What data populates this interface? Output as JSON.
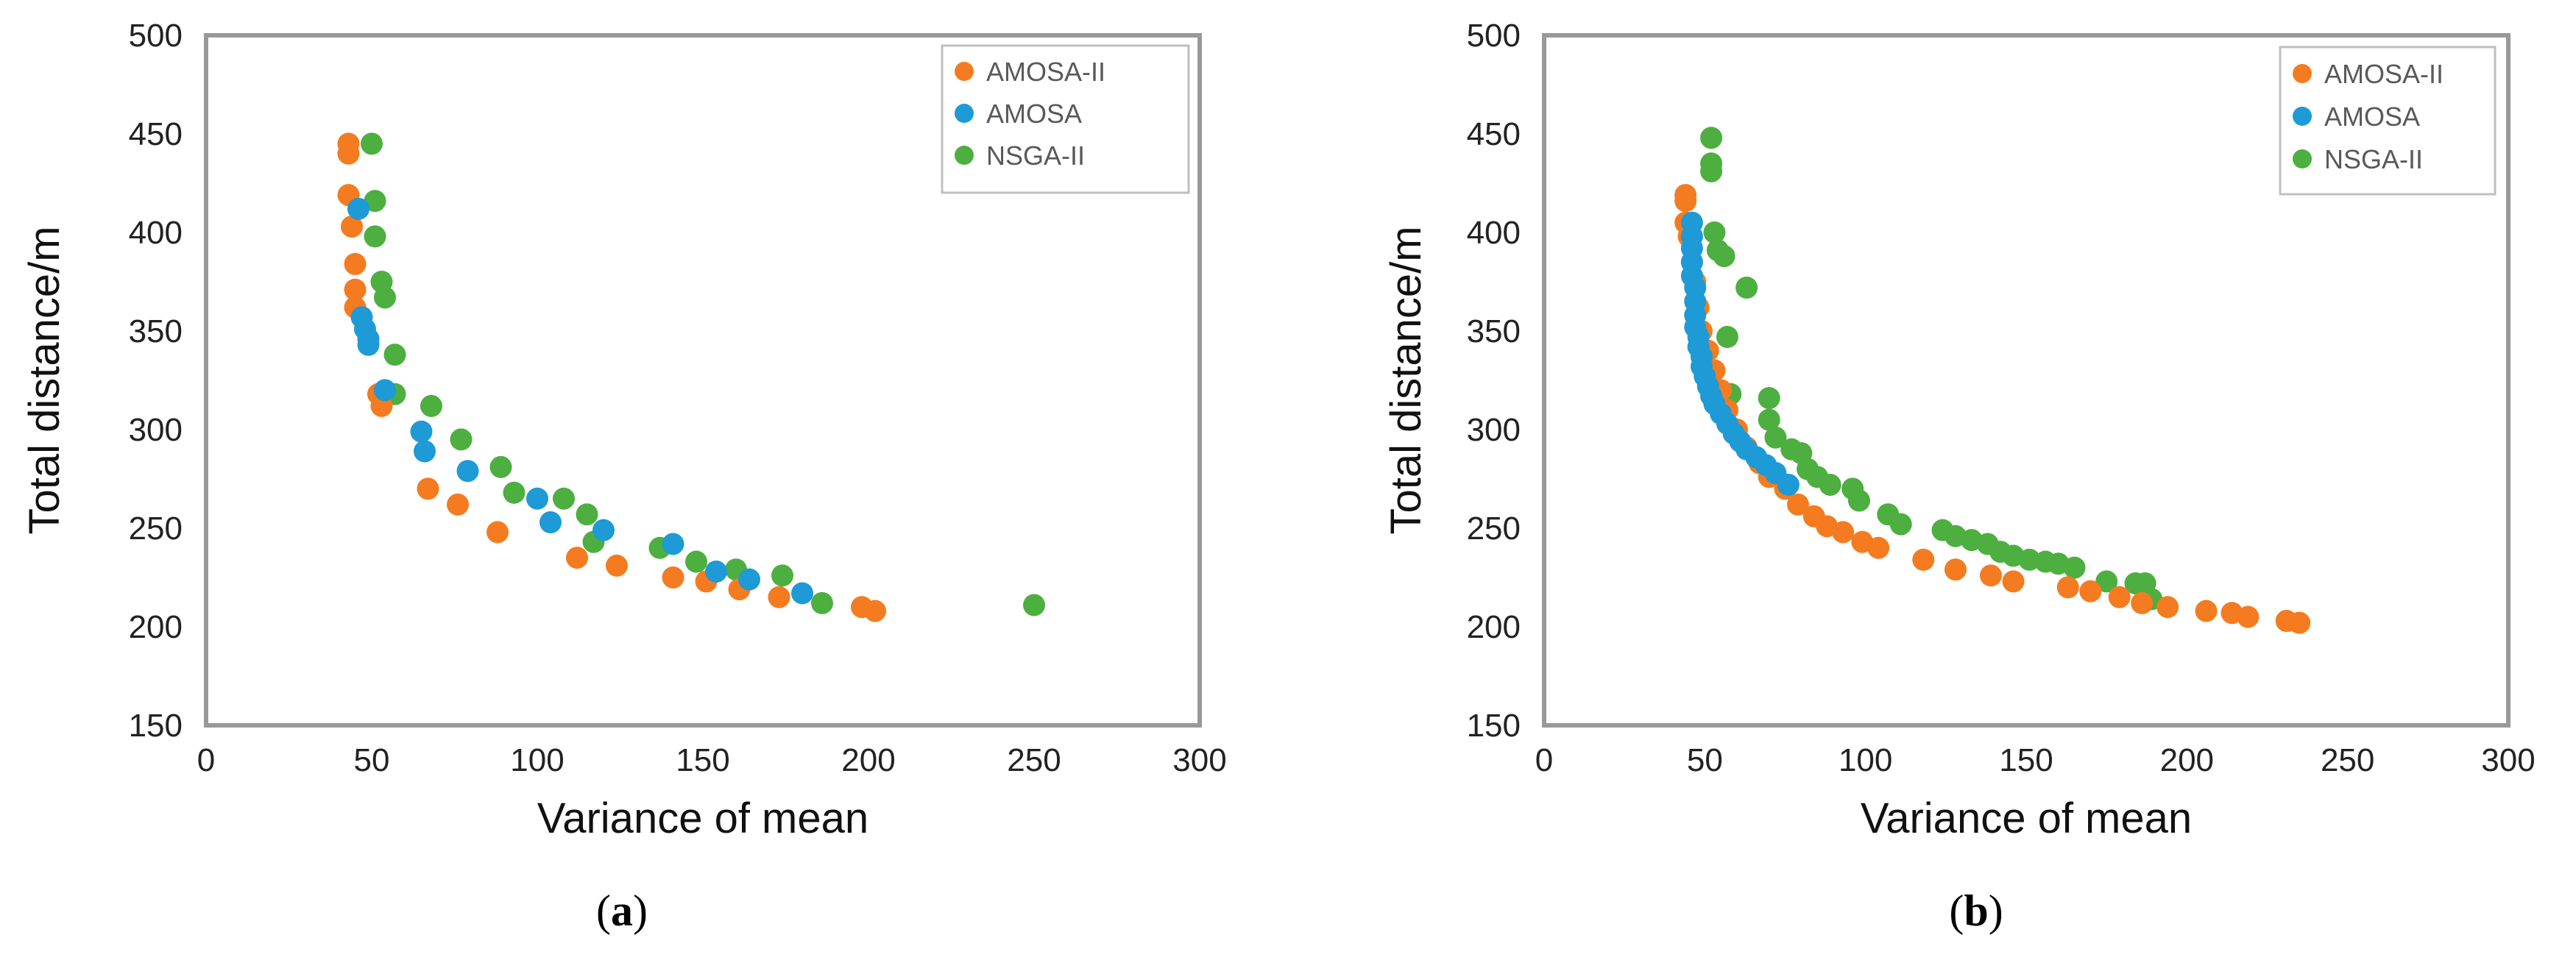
{
  "chart_data": [
    {
      "type": "scatter",
      "panel_label": "a",
      "panel_label_text": "(a)",
      "xlabel": "Variance of mean",
      "ylabel": "Total distance/m",
      "xlim": [
        0,
        300
      ],
      "ylim": [
        150,
        500
      ],
      "xticks": [
        "0",
        "50",
        "100",
        "150",
        "200",
        "250",
        "300"
      ],
      "yticks": [
        "150",
        "200",
        "250",
        "300",
        "350",
        "400",
        "450",
        "500"
      ],
      "grid": false,
      "legend": "top-right",
      "series": [
        {
          "name": "AMOSA-II",
          "color": "#F47B20",
          "points": [
            [
              43,
              445
            ],
            [
              43,
              440
            ],
            [
              43,
              419
            ],
            [
              44,
              403
            ],
            [
              45,
              384
            ],
            [
              45,
              371
            ],
            [
              45,
              362
            ],
            [
              52,
              318
            ],
            [
              53,
              312
            ],
            [
              67,
              270
            ],
            [
              76,
              262
            ],
            [
              88,
              248
            ],
            [
              112,
              235
            ],
            [
              124,
              231
            ],
            [
              141,
              225
            ],
            [
              151,
              223
            ],
            [
              161,
              219
            ],
            [
              173,
              215
            ],
            [
              198,
              210
            ],
            [
              202,
              208
            ]
          ]
        },
        {
          "name": "AMOSA",
          "color": "#1E9AD6",
          "points": [
            [
              46,
              412
            ],
            [
              47,
              357
            ],
            [
              48,
              351
            ],
            [
              49,
              346
            ],
            [
              49,
              343
            ],
            [
              54,
              320
            ],
            [
              65,
              299
            ],
            [
              66,
              289
            ],
            [
              79,
              279
            ],
            [
              100,
              265
            ],
            [
              104,
              253
            ],
            [
              120,
              249
            ],
            [
              141,
              242
            ],
            [
              154,
              228
            ],
            [
              164,
              224
            ],
            [
              180,
              217
            ]
          ]
        },
        {
          "name": "NSGA-II",
          "color": "#4CAF3F",
          "points": [
            [
              50,
              445
            ],
            [
              51,
              416
            ],
            [
              51,
              398
            ],
            [
              53,
              375
            ],
            [
              54,
              367
            ],
            [
              57,
              338
            ],
            [
              57,
              318
            ],
            [
              68,
              312
            ],
            [
              77,
              295
            ],
            [
              89,
              281
            ],
            [
              93,
              268
            ],
            [
              108,
              265
            ],
            [
              115,
              257
            ],
            [
              117,
              243
            ],
            [
              137,
              240
            ],
            [
              148,
              233
            ],
            [
              160,
              229
            ],
            [
              174,
              226
            ],
            [
              186,
              212
            ],
            [
              250,
              211
            ]
          ]
        }
      ]
    },
    {
      "type": "scatter",
      "panel_label": "b",
      "panel_label_text": "(b)",
      "xlabel": "Variance of mean",
      "ylabel": "Total distance/m",
      "xlim": [
        0,
        300
      ],
      "ylim": [
        150,
        500
      ],
      "xticks": [
        "0",
        "50",
        "100",
        "150",
        "200",
        "250",
        "300"
      ],
      "yticks": [
        "150",
        "200",
        "250",
        "300",
        "350",
        "400",
        "450",
        "500"
      ],
      "grid": false,
      "legend": "top-right",
      "series": [
        {
          "name": "AMOSA-II",
          "color": "#F47B20",
          "points": [
            [
              44,
              419
            ],
            [
              44,
              416
            ],
            [
              44,
              405
            ],
            [
              45,
              398
            ],
            [
              46,
              385
            ],
            [
              47,
              375
            ],
            [
              48,
              362
            ],
            [
              49,
              350
            ],
            [
              51,
              340
            ],
            [
              53,
              330
            ],
            [
              55,
              320
            ],
            [
              57,
              310
            ],
            [
              60,
              300
            ],
            [
              63,
              291
            ],
            [
              67,
              283
            ],
            [
              70,
              276
            ],
            [
              75,
              270
            ],
            [
              79,
              262
            ],
            [
              84,
              256
            ],
            [
              88,
              251
            ],
            [
              93,
              248
            ],
            [
              99,
              243
            ],
            [
              104,
              240
            ],
            [
              118,
              234
            ],
            [
              128,
              229
            ],
            [
              139,
              226
            ],
            [
              146,
              223
            ],
            [
              163,
              220
            ],
            [
              170,
              218
            ],
            [
              179,
              215
            ],
            [
              186,
              212
            ],
            [
              194,
              210
            ],
            [
              206,
              208
            ],
            [
              214,
              207
            ],
            [
              219,
              205
            ],
            [
              231,
              203
            ],
            [
              235,
              202
            ]
          ]
        },
        {
          "name": "AMOSA",
          "color": "#1E9AD6",
          "points": [
            [
              46,
              405
            ],
            [
              46,
              398
            ],
            [
              46,
              392
            ],
            [
              46,
              385
            ],
            [
              46,
              378
            ],
            [
              47,
              372
            ],
            [
              47,
              365
            ],
            [
              47,
              358
            ],
            [
              47,
              352
            ],
            [
              48,
              347
            ],
            [
              48,
              342
            ],
            [
              49,
              337
            ],
            [
              49,
              332
            ],
            [
              50,
              327
            ],
            [
              51,
              322
            ],
            [
              52,
              317
            ],
            [
              53,
              313
            ],
            [
              55,
              308
            ],
            [
              57,
              303
            ],
            [
              59,
              298
            ],
            [
              61,
              294
            ],
            [
              63,
              290
            ],
            [
              66,
              286
            ],
            [
              69,
              282
            ],
            [
              72,
              278
            ],
            [
              76,
              272
            ]
          ]
        },
        {
          "name": "NSGA-II",
          "color": "#4CAF3F",
          "points": [
            [
              52,
              448
            ],
            [
              52,
              435
            ],
            [
              52,
              431
            ],
            [
              53,
              400
            ],
            [
              54,
              391
            ],
            [
              56,
              388
            ],
            [
              57,
              347
            ],
            [
              58,
              318
            ],
            [
              63,
              372
            ],
            [
              70,
              316
            ],
            [
              70,
              305
            ],
            [
              72,
              296
            ],
            [
              77,
              290
            ],
            [
              80,
              288
            ],
            [
              82,
              280
            ],
            [
              85,
              276
            ],
            [
              89,
              272
            ],
            [
              96,
              270
            ],
            [
              98,
              264
            ],
            [
              107,
              257
            ],
            [
              111,
              252
            ],
            [
              124,
              249
            ],
            [
              128,
              246
            ],
            [
              133,
              244
            ],
            [
              138,
              242
            ],
            [
              142,
              238
            ],
            [
              146,
              236
            ],
            [
              151,
              234
            ],
            [
              156,
              233
            ],
            [
              160,
              232
            ],
            [
              165,
              230
            ],
            [
              175,
              223
            ],
            [
              184,
              222
            ],
            [
              187,
              222
            ],
            [
              189,
              214
            ]
          ]
        }
      ]
    }
  ]
}
